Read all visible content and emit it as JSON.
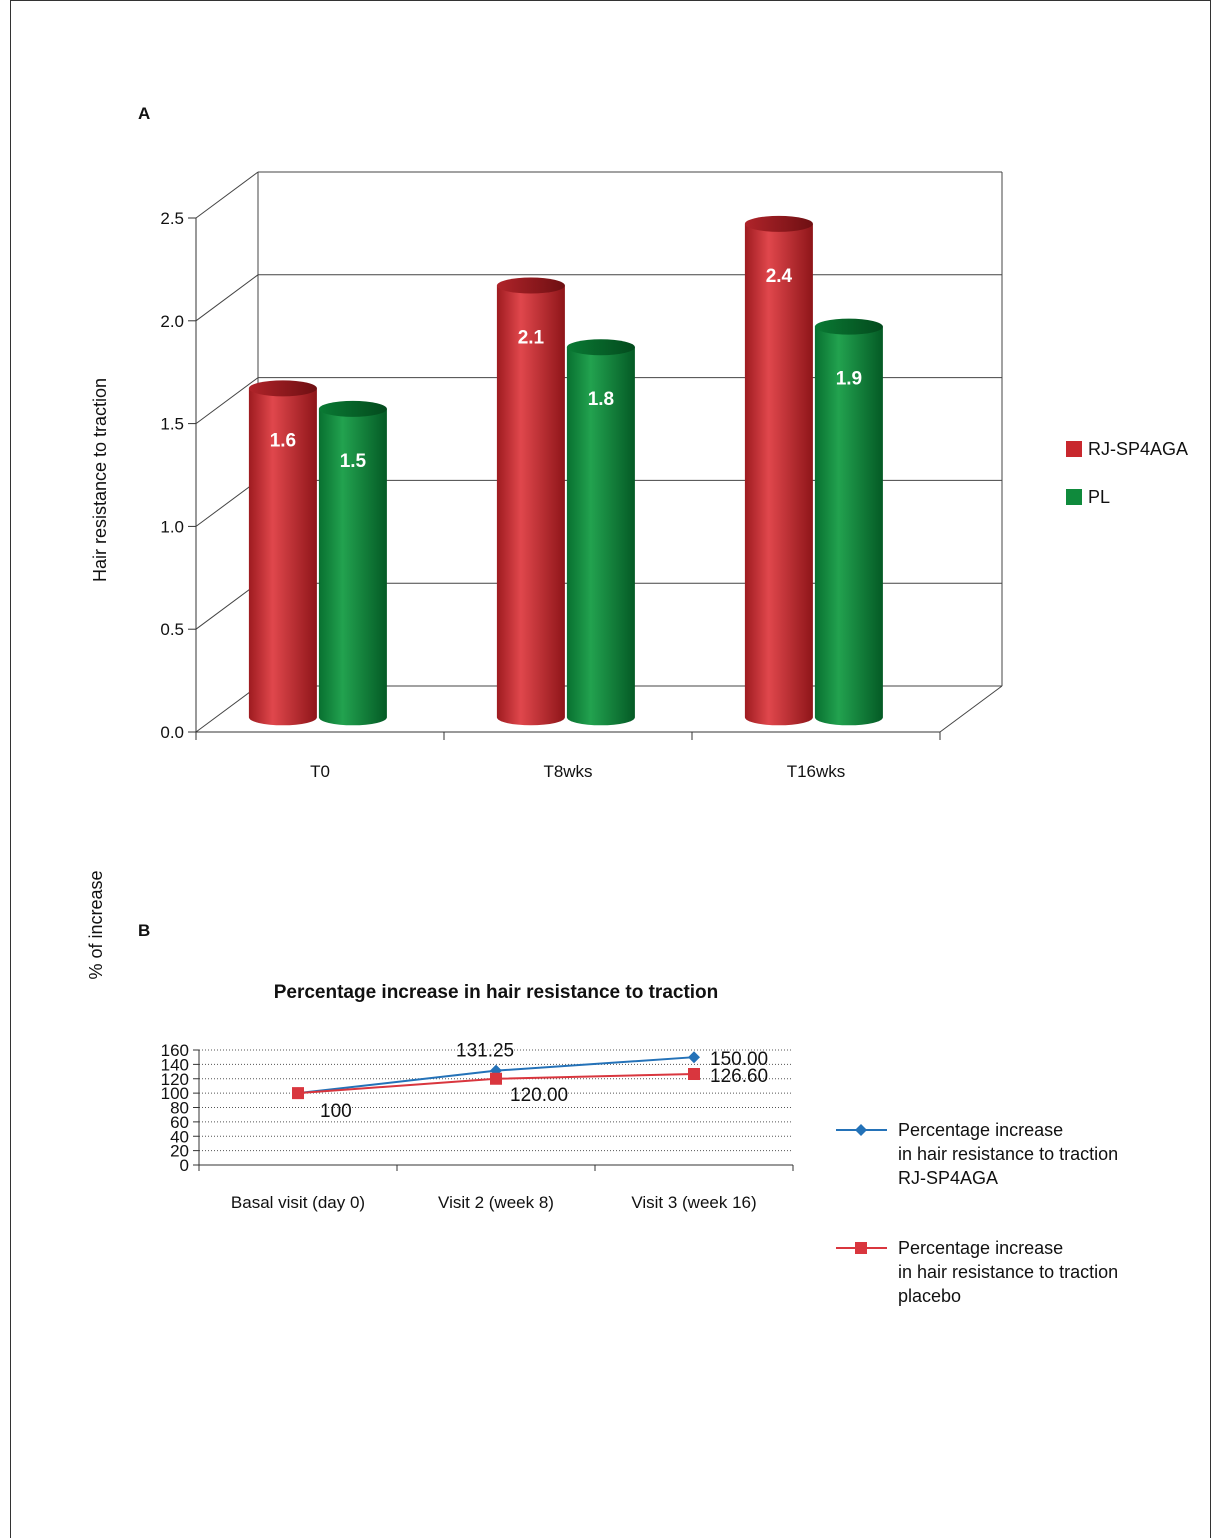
{
  "chart_data": [
    {
      "panel": "A",
      "type": "bar",
      "title": "",
      "xlabel": "",
      "ylabel": "Hair resistance to traction",
      "categories": [
        "T0",
        "T8wks",
        "T16wks"
      ],
      "series": [
        {
          "name": "RJ-SP4AGA",
          "values": [
            1.6,
            2.1,
            2.4
          ],
          "color": "#c8282e"
        },
        {
          "name": "PL",
          "values": [
            1.5,
            1.8,
            1.9
          ],
          "color": "#0f8a3c"
        }
      ],
      "yticks": [
        "0.0",
        "0.5",
        "1.0",
        "1.5",
        "2.0",
        "2.5"
      ],
      "ylim": [
        0,
        2.5
      ],
      "grid": true,
      "legend_position": "right",
      "style": "3d cylinders"
    },
    {
      "panel": "B",
      "type": "line",
      "title": "Percentage increase in hair resistance to traction",
      "xlabel": "",
      "ylabel": "% of increase",
      "categories": [
        "Basal visit (day 0)",
        "Visit 2 (week 8)",
        "Visit 3 (week 16)"
      ],
      "series": [
        {
          "name": "Percentage increase in hair resistance to traction RJ-SP4AGA",
          "legend_lines": [
            "Percentage increase",
            "in hair resistance to traction",
            "RJ-SP4AGA"
          ],
          "values": [
            100,
            131.25,
            150.0
          ],
          "labels": [
            "",
            "131.25",
            "150.00"
          ],
          "color": "#2472b8",
          "marker": "diamond"
        },
        {
          "name": "Percentage increase in hair resistance to traction placebo",
          "legend_lines": [
            "Percentage increase",
            "in hair resistance to traction",
            "placebo"
          ],
          "values": [
            100,
            120.0,
            126.6
          ],
          "labels": [
            "100",
            "120.00",
            "126.60"
          ],
          "color": "#d9363e",
          "marker": "square"
        }
      ],
      "yticks": [
        "0",
        "20",
        "40",
        "60",
        "80",
        "100",
        "120",
        "140",
        "160"
      ],
      "ylim": [
        0,
        160
      ],
      "grid": true,
      "legend_position": "right"
    }
  ]
}
